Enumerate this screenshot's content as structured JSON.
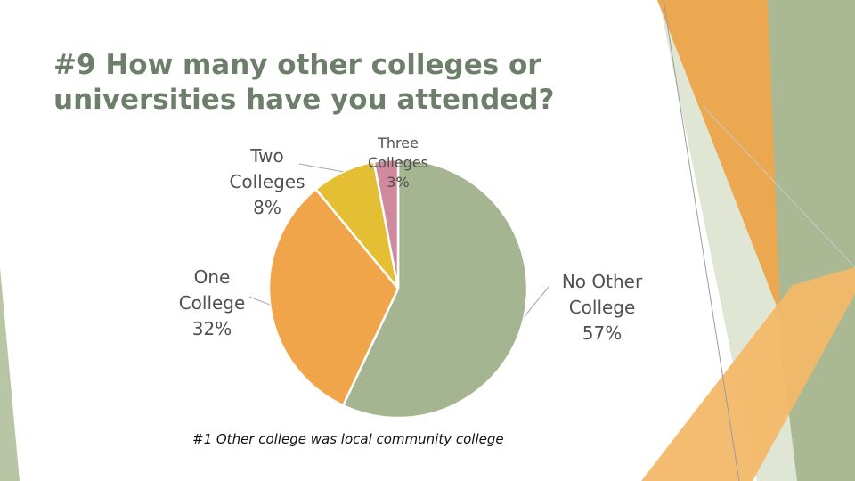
{
  "slide": {
    "title_line1": "#9 How many other colleges or",
    "title_line2": "universities have you attended?",
    "footnote": "#1 Other college was local community college"
  },
  "chart_data": {
    "type": "pie",
    "categories": [
      "No Other College",
      "One College",
      "Two Colleges",
      "Three Colleges"
    ],
    "values": [
      57,
      32,
      8,
      3
    ],
    "unit": "%",
    "colors": [
      "#a5b592",
      "#f0a54a",
      "#e4bf33",
      "#d08aa0"
    ],
    "labels": [
      {
        "lines": [
          "No Other",
          "College",
          "57%"
        ]
      },
      {
        "lines": [
          "One",
          "College",
          "32%"
        ]
      },
      {
        "lines": [
          "Two",
          "Colleges",
          "8%"
        ]
      },
      {
        "lines": [
          "Three",
          "Colleges",
          "3%"
        ]
      }
    ]
  },
  "theme": {
    "title_color": "#6d7f6a",
    "accent_orange": "#eea24e",
    "accent_sage": "#a8b890"
  }
}
